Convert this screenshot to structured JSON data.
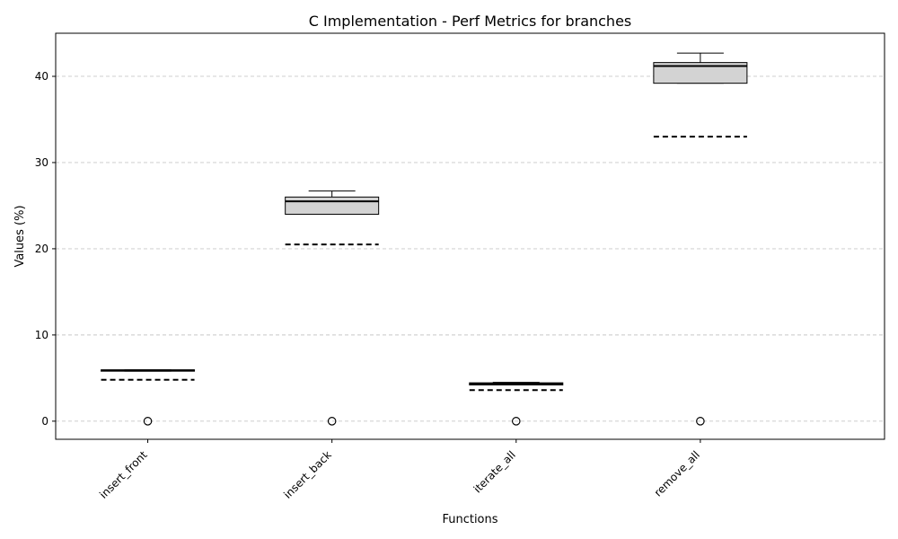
{
  "chart_data": {
    "type": "box",
    "title": "C Implementation - Perf Metrics for branches",
    "xlabel": "Functions",
    "ylabel": "Values (%)",
    "ylim": [
      -2.1,
      45
    ],
    "yticks": [
      0,
      10,
      20,
      30,
      40
    ],
    "grid": "y-dashed",
    "categories": [
      "insert_front",
      "insert_back",
      "iterate_all",
      "remove_all"
    ],
    "boxes": [
      {
        "name": "insert_front",
        "whisker_low": 5.8,
        "q1": 5.8,
        "median": 5.9,
        "q3": 5.95,
        "whisker_high": 5.95,
        "mean": 4.8,
        "outliers": [
          0
        ]
      },
      {
        "name": "insert_back",
        "whisker_low": 24.0,
        "q1": 24.0,
        "median": 25.5,
        "q3": 26.0,
        "whisker_high": 26.7,
        "mean": 20.5,
        "outliers": [
          0
        ]
      },
      {
        "name": "iterate_all",
        "whisker_low": 4.2,
        "q1": 4.2,
        "median": 4.35,
        "q3": 4.45,
        "whisker_high": 4.5,
        "mean": 3.6,
        "outliers": [
          0
        ]
      },
      {
        "name": "remove_all",
        "whisker_low": 39.2,
        "q1": 39.2,
        "median": 41.2,
        "q3": 41.6,
        "whisker_high": 42.7,
        "mean": 33.0,
        "outliers": [
          0
        ]
      }
    ]
  }
}
